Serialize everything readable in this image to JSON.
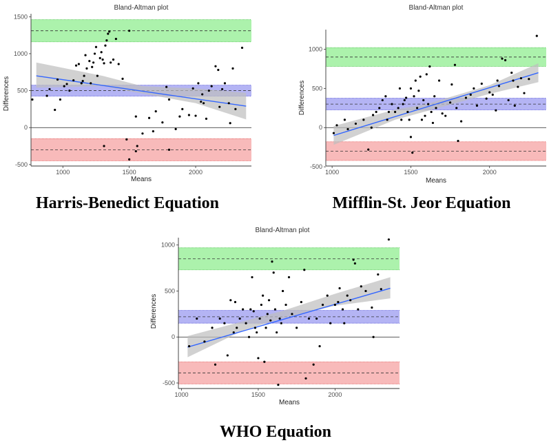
{
  "colors": {
    "upper_band": "#90ee90",
    "upper_band_stroke": "#3fbf3f",
    "mean_band": "#9b9bf0",
    "mean_band_stroke": "#4a4ad8",
    "lower_band": "#f6a3a3",
    "lower_band_stroke": "#e04a4a",
    "regression_line": "#3366ff",
    "confidence_band": "#bdbdbd",
    "points": "#000000",
    "axis": "#333333"
  },
  "chart_data": [
    {
      "type": "scatter",
      "title": "Bland-Altman plot",
      "caption": "Harris-Benedict Equation",
      "xlabel": "Means",
      "ylabel": "Differences",
      "xlim": [
        760,
        2420
      ],
      "ylim": [
        -520,
        1540
      ],
      "xticks": [
        1000,
        1500,
        2000
      ],
      "yticks": [
        -500,
        0,
        500,
        1000,
        1500
      ],
      "mean_difference": 500,
      "mean_band": [
        425,
        575
      ],
      "upper_loa": 1310,
      "upper_band": [
        1160,
        1460
      ],
      "lower_loa": -300,
      "lower_band": [
        -450,
        -150
      ],
      "regression": {
        "x": [
          800,
          2380
        ],
        "y": [
          700,
          290
        ]
      },
      "confidence_band": {
        "x": [
          800,
          1300,
          1600,
          2000,
          2380
        ],
        "lower": [
          540,
          560,
          460,
          330,
          110
        ],
        "upper": [
          880,
          700,
          560,
          530,
          470
        ]
      },
      "points": [
        [
          770,
          380
        ],
        [
          880,
          430
        ],
        [
          900,
          520
        ],
        [
          940,
          240
        ],
        [
          960,
          650
        ],
        [
          980,
          380
        ],
        [
          1010,
          560
        ],
        [
          1030,
          590
        ],
        [
          1050,
          500
        ],
        [
          1080,
          640
        ],
        [
          1100,
          840
        ],
        [
          1120,
          860
        ],
        [
          1140,
          600
        ],
        [
          1150,
          630
        ],
        [
          1160,
          700
        ],
        [
          1170,
          980
        ],
        [
          1180,
          800
        ],
        [
          1200,
          900
        ],
        [
          1210,
          600
        ],
        [
          1220,
          820
        ],
        [
          1230,
          880
        ],
        [
          1240,
          1000
        ],
        [
          1250,
          1090
        ],
        [
          1260,
          700
        ],
        [
          1280,
          940
        ],
        [
          1290,
          1020
        ],
        [
          1300,
          920
        ],
        [
          1310,
          870
        ],
        [
          1320,
          1110
        ],
        [
          1330,
          1180
        ],
        [
          1340,
          1270
        ],
        [
          1350,
          1300
        ],
        [
          1360,
          880
        ],
        [
          1380,
          920
        ],
        [
          1400,
          1200
        ],
        [
          1420,
          860
        ],
        [
          1450,
          660
        ],
        [
          1500,
          1310
        ],
        [
          1310,
          -250
        ],
        [
          1480,
          -160
        ],
        [
          1500,
          -430
        ],
        [
          1550,
          -320
        ],
        [
          1560,
          -250
        ],
        [
          1600,
          -80
        ],
        [
          1550,
          150
        ],
        [
          1650,
          130
        ],
        [
          1680,
          -50
        ],
        [
          1700,
          220
        ],
        [
          1750,
          70
        ],
        [
          1780,
          550
        ],
        [
          1800,
          380
        ],
        [
          1800,
          -300
        ],
        [
          1850,
          -20
        ],
        [
          1880,
          150
        ],
        [
          1900,
          250
        ],
        [
          1950,
          170
        ],
        [
          1980,
          530
        ],
        [
          2000,
          160
        ],
        [
          2020,
          600
        ],
        [
          2040,
          350
        ],
        [
          2050,
          450
        ],
        [
          2060,
          330
        ],
        [
          2080,
          120
        ],
        [
          2100,
          500
        ],
        [
          2120,
          560
        ],
        [
          2150,
          830
        ],
        [
          2170,
          780
        ],
        [
          2180,
          280
        ],
        [
          2200,
          520
        ],
        [
          2220,
          600
        ],
        [
          2250,
          330
        ],
        [
          2260,
          60
        ],
        [
          2280,
          800
        ],
        [
          2300,
          250
        ],
        [
          2350,
          1080
        ]
      ]
    },
    {
      "type": "scatter",
      "title": "Bland-Altman plot",
      "caption": "Mifflin-St. Jeor Equation",
      "xlabel": "Means",
      "ylabel": "Differences",
      "xlim": [
        960,
        2360
      ],
      "ylim": [
        -490,
        1250
      ],
      "xticks": [
        1000,
        1500,
        2000
      ],
      "yticks": [
        -500,
        0,
        500,
        1000
      ],
      "mean_difference": 300,
      "mean_band": [
        225,
        375
      ],
      "upper_loa": 900,
      "upper_band": [
        780,
        1020
      ],
      "lower_loa": -300,
      "lower_band": [
        -420,
        -180
      ],
      "regression": {
        "x": [
          1010,
          2310
        ],
        "y": [
          -100,
          700
        ]
      },
      "confidence_band": {
        "x": [
          1010,
          1400,
          1600,
          2000,
          2310
        ],
        "lower": [
          -220,
          100,
          210,
          430,
          580
        ],
        "upper": [
          20,
          230,
          300,
          540,
          820
        ]
      },
      "points": [
        [
          1010,
          -70
        ],
        [
          1030,
          30
        ],
        [
          1080,
          100
        ],
        [
          1100,
          -20
        ],
        [
          1150,
          50
        ],
        [
          1200,
          100
        ],
        [
          1230,
          -280
        ],
        [
          1250,
          0
        ],
        [
          1260,
          160
        ],
        [
          1280,
          200
        ],
        [
          1300,
          250
        ],
        [
          1320,
          350
        ],
        [
          1340,
          400
        ],
        [
          1350,
          100
        ],
        [
          1360,
          200
        ],
        [
          1380,
          300
        ],
        [
          1400,
          200
        ],
        [
          1420,
          250
        ],
        [
          1430,
          500
        ],
        [
          1440,
          100
        ],
        [
          1450,
          300
        ],
        [
          1460,
          350
        ],
        [
          1470,
          380
        ],
        [
          1480,
          200
        ],
        [
          1490,
          100
        ],
        [
          1500,
          500
        ],
        [
          1500,
          -120
        ],
        [
          1510,
          -320
        ],
        [
          1520,
          400
        ],
        [
          1530,
          600
        ],
        [
          1540,
          250
        ],
        [
          1550,
          470
        ],
        [
          1560,
          650
        ],
        [
          1570,
          100
        ],
        [
          1580,
          350
        ],
        [
          1590,
          150
        ],
        [
          1600,
          680
        ],
        [
          1610,
          300
        ],
        [
          1620,
          780
        ],
        [
          1630,
          200
        ],
        [
          1640,
          60
        ],
        [
          1650,
          400
        ],
        [
          1660,
          250
        ],
        [
          1680,
          600
        ],
        [
          1700,
          180
        ],
        [
          1720,
          150
        ],
        [
          1750,
          320
        ],
        [
          1760,
          550
        ],
        [
          1780,
          800
        ],
        [
          1790,
          250
        ],
        [
          1800,
          -170
        ],
        [
          1820,
          80
        ],
        [
          1850,
          380
        ],
        [
          1880,
          420
        ],
        [
          1900,
          500
        ],
        [
          1920,
          280
        ],
        [
          1950,
          560
        ],
        [
          1980,
          370
        ],
        [
          2000,
          450
        ],
        [
          2020,
          420
        ],
        [
          2040,
          220
        ],
        [
          2050,
          600
        ],
        [
          2060,
          530
        ],
        [
          2080,
          880
        ],
        [
          2100,
          860
        ],
        [
          2120,
          350
        ],
        [
          2140,
          700
        ],
        [
          2150,
          600
        ],
        [
          2160,
          280
        ],
        [
          2180,
          520
        ],
        [
          2200,
          630
        ],
        [
          2220,
          440
        ],
        [
          2250,
          620
        ],
        [
          2300,
          1170
        ]
      ]
    },
    {
      "type": "scatter",
      "title": "Bland-Altman plot",
      "caption": "WHO Equation",
      "xlabel": "Means",
      "ylabel": "Differences",
      "xlim": [
        980,
        2420
      ],
      "ylim": [
        -560,
        1080
      ],
      "xticks": [
        1000,
        1500,
        2000
      ],
      "yticks": [
        -500,
        0,
        500,
        1000
      ],
      "mean_difference": 220,
      "mean_band": [
        150,
        290
      ],
      "upper_loa": 850,
      "upper_band": [
        730,
        970
      ],
      "lower_loa": -390,
      "lower_band": [
        -510,
        -270
      ],
      "regression": {
        "x": [
          1040,
          2360
        ],
        "y": [
          -110,
          530
        ]
      },
      "confidence_band": {
        "x": [
          1040,
          1400,
          1650,
          2000,
          2360
        ],
        "lower": [
          -220,
          70,
          200,
          340,
          420
        ],
        "upper": [
          10,
          170,
          280,
          470,
          650
        ]
      },
      "points": [
        [
          1050,
          -100
        ],
        [
          1100,
          200
        ],
        [
          1150,
          -50
        ],
        [
          1200,
          100
        ],
        [
          1220,
          -300
        ],
        [
          1250,
          200
        ],
        [
          1280,
          150
        ],
        [
          1300,
          -200
        ],
        [
          1320,
          400
        ],
        [
          1340,
          50
        ],
        [
          1350,
          380
        ],
        [
          1360,
          100
        ],
        [
          1380,
          200
        ],
        [
          1400,
          300
        ],
        [
          1420,
          150
        ],
        [
          1440,
          0
        ],
        [
          1450,
          300
        ],
        [
          1460,
          650
        ],
        [
          1470,
          280
        ],
        [
          1480,
          100
        ],
        [
          1490,
          50
        ],
        [
          1500,
          -230
        ],
        [
          1510,
          200
        ],
        [
          1520,
          350
        ],
        [
          1530,
          450
        ],
        [
          1540,
          -270
        ],
        [
          1550,
          100
        ],
        [
          1560,
          250
        ],
        [
          1570,
          400
        ],
        [
          1580,
          180
        ],
        [
          1590,
          820
        ],
        [
          1600,
          700
        ],
        [
          1610,
          300
        ],
        [
          1620,
          50
        ],
        [
          1630,
          -520
        ],
        [
          1640,
          200
        ],
        [
          1650,
          150
        ],
        [
          1660,
          500
        ],
        [
          1680,
          350
        ],
        [
          1700,
          650
        ],
        [
          1720,
          250
        ],
        [
          1750,
          100
        ],
        [
          1780,
          380
        ],
        [
          1800,
          730
        ],
        [
          1810,
          -450
        ],
        [
          1830,
          200
        ],
        [
          1860,
          -300
        ],
        [
          1880,
          200
        ],
        [
          1900,
          -100
        ],
        [
          1920,
          350
        ],
        [
          1950,
          450
        ],
        [
          1970,
          150
        ],
        [
          2000,
          350
        ],
        [
          2020,
          380
        ],
        [
          2030,
          530
        ],
        [
          2050,
          300
        ],
        [
          2060,
          150
        ],
        [
          2080,
          450
        ],
        [
          2100,
          400
        ],
        [
          2120,
          840
        ],
        [
          2130,
          800
        ],
        [
          2150,
          300
        ],
        [
          2170,
          550
        ],
        [
          2200,
          500
        ],
        [
          2240,
          320
        ],
        [
          2250,
          0
        ],
        [
          2280,
          680
        ],
        [
          2300,
          520
        ],
        [
          2350,
          1060
        ]
      ]
    }
  ]
}
